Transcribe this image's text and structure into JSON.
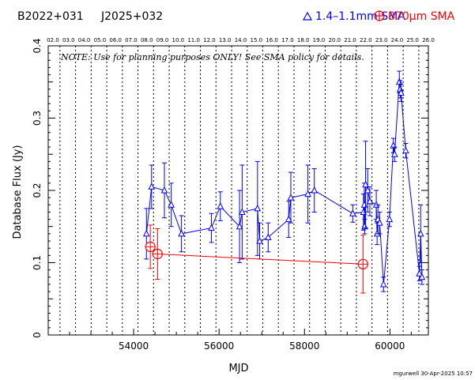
{
  "chart_data": {
    "type": "scatter",
    "source_names": [
      "B2022+031",
      "J2025+032"
    ],
    "xlabel": "MJD",
    "ylabel": "Database Flux (Jy)",
    "xlim": [
      52000,
      60900
    ],
    "ylim": [
      0,
      0.4
    ],
    "x_ticks": [
      54000,
      56000,
      58000,
      60000
    ],
    "x_tick_labels": [
      "54000",
      "56000",
      "58000",
      "60000"
    ],
    "y_ticks": [
      0,
      0.1,
      0.2,
      0.3,
      0.4
    ],
    "y_tick_labels": [
      "0",
      "0.1",
      "0.2",
      "0.3",
      "0.4"
    ],
    "top_axis_labels": [
      "02.0",
      "03.0",
      "04.0",
      "05.0",
      "06.0",
      "07.0",
      "08.0",
      "09.0",
      "10.0",
      "11.0",
      "12.0",
      "13.0",
      "14.0",
      "15.0",
      "16.0",
      "17.0",
      "18.0",
      "19.0",
      "20.0",
      "21.0",
      "22.0",
      "23.0",
      "24.0",
      "25.0",
      "26.0"
    ],
    "year_lines_mjd": [
      52275,
      52640,
      53005,
      53371,
      53736,
      54101,
      54466,
      54832,
      55197,
      55562,
      55927,
      56293,
      56658,
      57023,
      57388,
      57754,
      58119,
      58484,
      58849,
      59215,
      59580,
      59945,
      60310,
      60676
    ],
    "annotation": "NOTE: Use for planning purposes ONLY!  See SMA policy for details.",
    "footer_stamp": "mgurwell 30-Apr-2025 10:57",
    "series": [
      {
        "name": "1.4–1.1mm SMA",
        "color": "#0000ff",
        "marker": "triangle",
        "points": [
          {
            "x": 54300,
            "y": 0.14,
            "err": 0.035
          },
          {
            "x": 54420,
            "y": 0.205,
            "err": 0.03
          },
          {
            "x": 54720,
            "y": 0.2,
            "err": 0.038
          },
          {
            "x": 54880,
            "y": 0.18,
            "err": 0.03
          },
          {
            "x": 55120,
            "y": 0.14,
            "err": 0.025
          },
          {
            "x": 55820,
            "y": 0.148,
            "err": 0.02
          },
          {
            "x": 56030,
            "y": 0.178,
            "err": 0.02
          },
          {
            "x": 56480,
            "y": 0.15,
            "err": 0.05
          },
          {
            "x": 56540,
            "y": 0.17,
            "err": 0.065
          },
          {
            "x": 56900,
            "y": 0.175,
            "err": 0.065
          },
          {
            "x": 56950,
            "y": 0.13,
            "err": 0.025
          },
          {
            "x": 57150,
            "y": 0.135,
            "err": 0.02
          },
          {
            "x": 57630,
            "y": 0.16,
            "err": 0.025
          },
          {
            "x": 57680,
            "y": 0.19,
            "err": 0.035
          },
          {
            "x": 58080,
            "y": 0.195,
            "err": 0.04
          },
          {
            "x": 58230,
            "y": 0.2,
            "err": 0.03
          },
          {
            "x": 59130,
            "y": 0.168,
            "err": 0.012
          },
          {
            "x": 59380,
            "y": 0.17,
            "err": 0.025
          },
          {
            "x": 59400,
            "y": 0.18,
            "err": 0.03
          },
          {
            "x": 59410,
            "y": 0.15,
            "err": 0.01
          },
          {
            "x": 59430,
            "y": 0.208,
            "err": 0.06
          },
          {
            "x": 59480,
            "y": 0.2,
            "err": 0.03
          },
          {
            "x": 59530,
            "y": 0.185,
            "err": 0.02
          },
          {
            "x": 59680,
            "y": 0.18,
            "err": 0.02
          },
          {
            "x": 59700,
            "y": 0.14,
            "err": 0.015
          },
          {
            "x": 59720,
            "y": 0.16,
            "err": 0.02
          },
          {
            "x": 59760,
            "y": 0.155,
            "err": 0.015
          },
          {
            "x": 59850,
            "y": 0.07,
            "err": 0.01
          },
          {
            "x": 59990,
            "y": 0.16,
            "err": 0.01
          },
          {
            "x": 60080,
            "y": 0.262,
            "err": 0.01
          },
          {
            "x": 60110,
            "y": 0.25,
            "err": 0.01
          },
          {
            "x": 60220,
            "y": 0.35,
            "err": 0.015
          },
          {
            "x": 60240,
            "y": 0.34,
            "err": 0.012
          },
          {
            "x": 60260,
            "y": 0.335,
            "err": 0.012
          },
          {
            "x": 60370,
            "y": 0.255,
            "err": 0.01
          },
          {
            "x": 60690,
            "y": 0.085,
            "err": 0.01
          },
          {
            "x": 60720,
            "y": 0.14,
            "err": 0.04
          },
          {
            "x": 60750,
            "y": 0.08,
            "err": 0.01
          }
        ]
      },
      {
        "name": "870µm SMA",
        "color": "#ff0000",
        "marker": "circle-plus",
        "points": [
          {
            "x": 54390,
            "y": 0.122,
            "err": 0.03
          },
          {
            "x": 54560,
            "y": 0.112,
            "err": 0.035
          },
          {
            "x": 59370,
            "y": 0.098,
            "err": 0.04
          }
        ]
      }
    ]
  }
}
